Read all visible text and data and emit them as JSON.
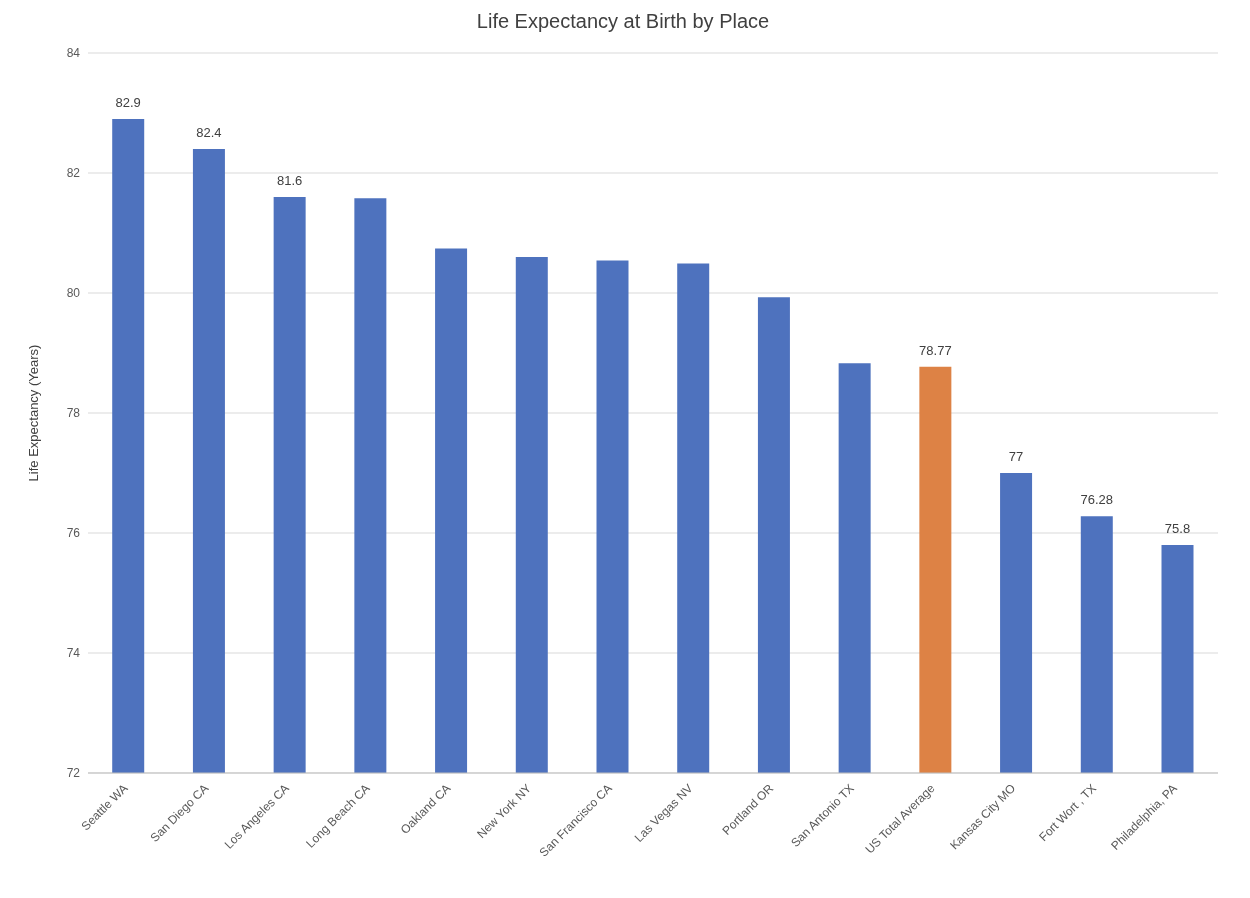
{
  "chart_data": {
    "type": "bar",
    "title": "Life Expectancy at Birth by Place",
    "ylabel": "Life Expectancy (Years)",
    "categories": [
      "Seattle WA",
      "San Diego CA",
      "Los Angeles CA",
      "Long Beach CA",
      "Oakland CA",
      "New York NY",
      "San Francisco CA",
      "Las Vegas NV",
      "Portland OR",
      "San Antonio TX",
      "US Total Average",
      "Kansas City MO",
      "Fort Wort , TX",
      "Philadelphia, PA"
    ],
    "values": [
      82.9,
      82.4,
      81.6,
      81.58,
      80.74,
      80.6,
      80.54,
      80.49,
      79.93,
      78.83,
      78.77,
      77,
      76.28,
      75.8
    ],
    "value_labels": [
      "82.9",
      "82.4",
      "81.6",
      null,
      null,
      null,
      null,
      null,
      null,
      null,
      "78.77",
      "77",
      "76.28",
      "75.8"
    ],
    "colors": [
      "#4e72be",
      "#4e72be",
      "#4e72be",
      "#4e72be",
      "#4e72be",
      "#4e72be",
      "#4e72be",
      "#4e72be",
      "#4e72be",
      "#4e72be",
      "#dd8245",
      "#4e72be",
      "#4e72be",
      "#4e72be"
    ],
    "ylim": [
      72,
      84
    ],
    "yticks": [
      72,
      74,
      76,
      78,
      80,
      82,
      84
    ],
    "grid": "y"
  }
}
